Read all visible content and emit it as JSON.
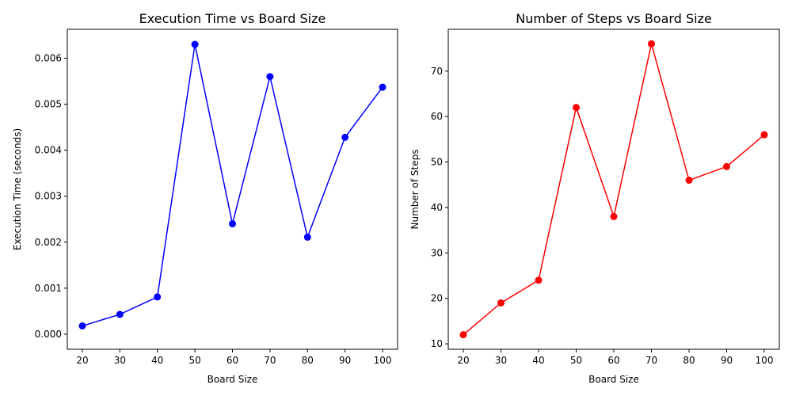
{
  "chart_data": [
    {
      "type": "line",
      "title": "Execution Time vs Board Size",
      "xlabel": "Board Size",
      "ylabel": "Execution Time (seconds)",
      "x": [
        20,
        30,
        40,
        50,
        60,
        70,
        80,
        90,
        100
      ],
      "series": [
        {
          "values": [
            0.00018,
            0.00043,
            0.00081,
            0.0063,
            0.0024,
            0.0056,
            0.00211,
            0.00428,
            0.00537
          ],
          "color": "#0000ff"
        }
      ],
      "xticks": [
        20,
        30,
        40,
        50,
        60,
        70,
        80,
        90,
        100
      ],
      "xtick_labels": [
        "20",
        "30",
        "40",
        "50",
        "60",
        "70",
        "80",
        "90",
        "100"
      ],
      "yticks": [
        0,
        0.001,
        0.002,
        0.003,
        0.004,
        0.005,
        0.006
      ],
      "ytick_labels": [
        "0.000",
        "0.001",
        "0.002",
        "0.003",
        "0.004",
        "0.005",
        "0.006"
      ],
      "xlim": [
        16,
        104
      ],
      "ylim": [
        -0.000328,
        0.006628
      ],
      "grid": false,
      "marker": "circle"
    },
    {
      "type": "line",
      "title": "Number of Steps vs Board Size",
      "xlabel": "Board Size",
      "ylabel": "Number of Steps",
      "x": [
        20,
        30,
        40,
        50,
        60,
        70,
        80,
        90,
        100
      ],
      "series": [
        {
          "values": [
            12,
            19,
            24,
            62,
            38,
            76,
            46,
            49,
            56
          ],
          "color": "#ff0000"
        }
      ],
      "xticks": [
        20,
        30,
        40,
        50,
        60,
        70,
        80,
        90,
        100
      ],
      "xtick_labels": [
        "20",
        "30",
        "40",
        "50",
        "60",
        "70",
        "80",
        "90",
        "100"
      ],
      "yticks": [
        10,
        20,
        30,
        40,
        50,
        60,
        70
      ],
      "ytick_labels": [
        "10",
        "20",
        "30",
        "40",
        "50",
        "60",
        "70"
      ],
      "xlim": [
        16,
        104
      ],
      "ylim": [
        8.8,
        79.2
      ],
      "grid": false,
      "marker": "circle"
    }
  ]
}
